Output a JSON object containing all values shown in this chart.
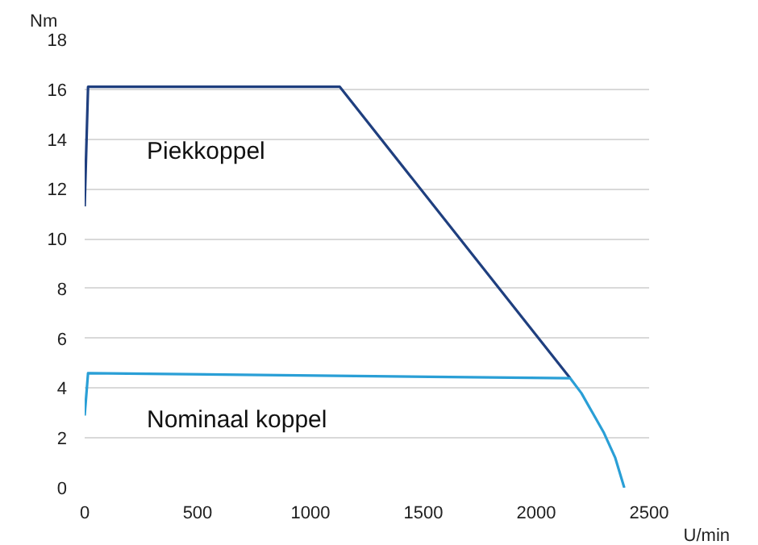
{
  "chart_data": {
    "type": "line",
    "xlabel": "U/min",
    "ylabel": "Nm",
    "series": [
      {
        "name": "Piekkoppel",
        "color": "#1f3f7f",
        "x": [
          0,
          15,
          1130,
          2150
        ],
        "values": [
          11.3,
          16.1,
          16.1,
          4.4
        ]
      },
      {
        "name": "Nominaal koppel",
        "color": "#2a9fd6",
        "x": [
          0,
          15,
          2150,
          2200,
          2250,
          2300,
          2350,
          2390
        ],
        "values": [
          2.9,
          4.6,
          4.4,
          3.8,
          3.0,
          2.2,
          1.2,
          0
        ]
      }
    ],
    "xlim": [
      0,
      2500
    ],
    "ylim": [
      0,
      18
    ],
    "xticks": [
      0,
      500,
      1000,
      1500,
      2000,
      2500
    ],
    "yticks": [
      0,
      2,
      4,
      6,
      8,
      10,
      12,
      14,
      16,
      18
    ],
    "grid": "y",
    "legend": false,
    "marker": "none",
    "line_style": "solid"
  }
}
